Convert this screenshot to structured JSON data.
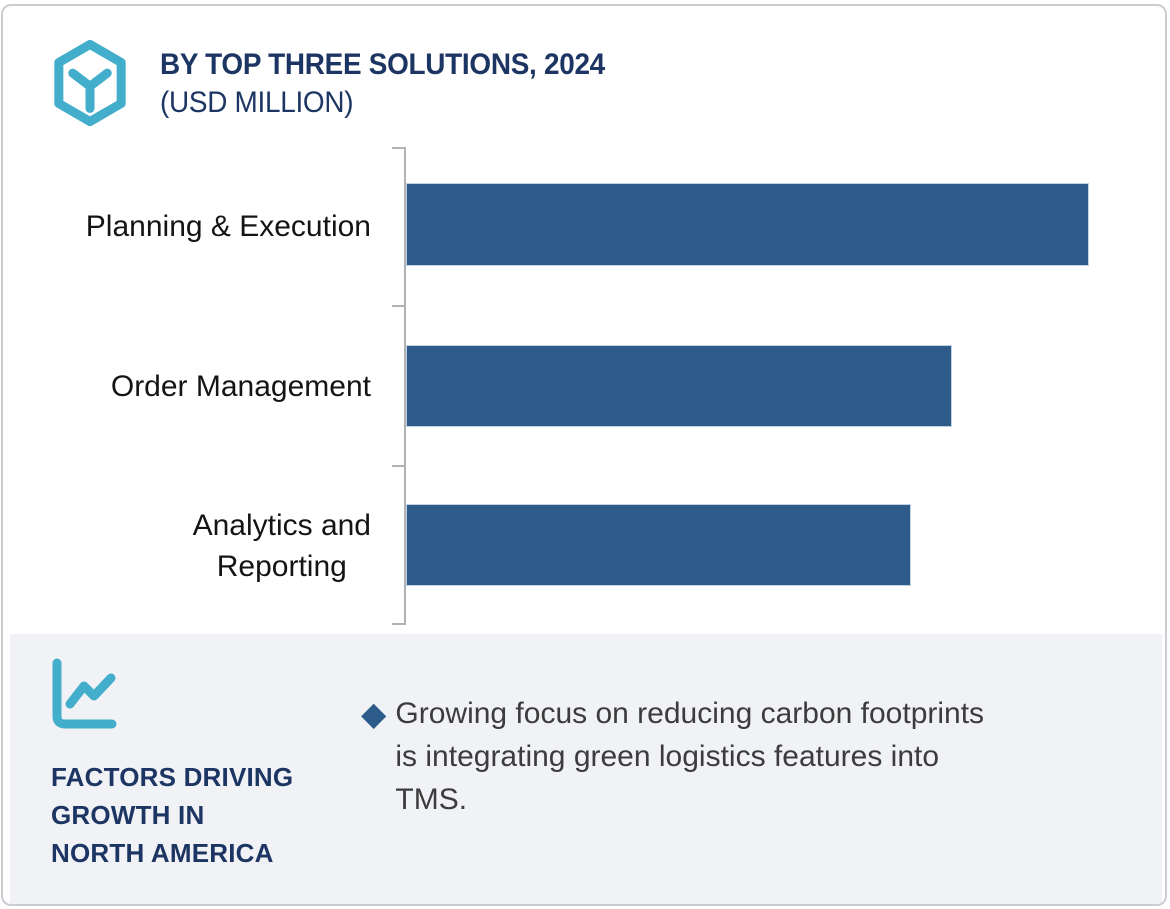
{
  "header": {
    "title": "BY TOP THREE SOLUTIONS, 2024",
    "subtitle": "(USD MILLION)",
    "logo_icon": "hexagon-box-logo-icon"
  },
  "chart_data": {
    "type": "bar",
    "orientation": "horizontal",
    "title": "BY TOP THREE SOLUTIONS, 2024",
    "subtitle": "(USD MILLION)",
    "unit": "USD Million",
    "categories": [
      "Planning & Execution",
      "Order Management",
      "Analytics and Reporting"
    ],
    "category_display_lines": [
      [
        "Planning & Execution"
      ],
      [
        "Order Management"
      ],
      [
        "Analytics and",
        "Reporting"
      ]
    ],
    "values": [
      100,
      80,
      74
    ],
    "values_note": "relative bar lengths (% of longest bar); numeric value axis, gridlines and data labels are not shown in the image",
    "bar_color": "#2d5c8b",
    "axis_color": "#b0b3b6",
    "value_axis_visible": false,
    "gridlines": false,
    "legend": false
  },
  "factors": {
    "icon": "line-chart-icon",
    "heading_lines": [
      "FACTORS DRIVING",
      "GROWTH IN",
      "NORTH AMERICA"
    ],
    "bullet": {
      "marker": "◆",
      "text": "Growing focus on reducing carbon footprints is integrating green logistics features into TMS.",
      "lines": [
        "Growing focus on reducing carbon footprints",
        "is integrating green logistics features into",
        "TMS."
      ]
    }
  },
  "colors": {
    "accent_teal": "#43aecb",
    "heading_navy": "#1c3563",
    "panel_bg": "#f0f2f6",
    "body_text": "#3c3c3c",
    "label_text": "#141414",
    "card_border": "#c9ccd0"
  }
}
